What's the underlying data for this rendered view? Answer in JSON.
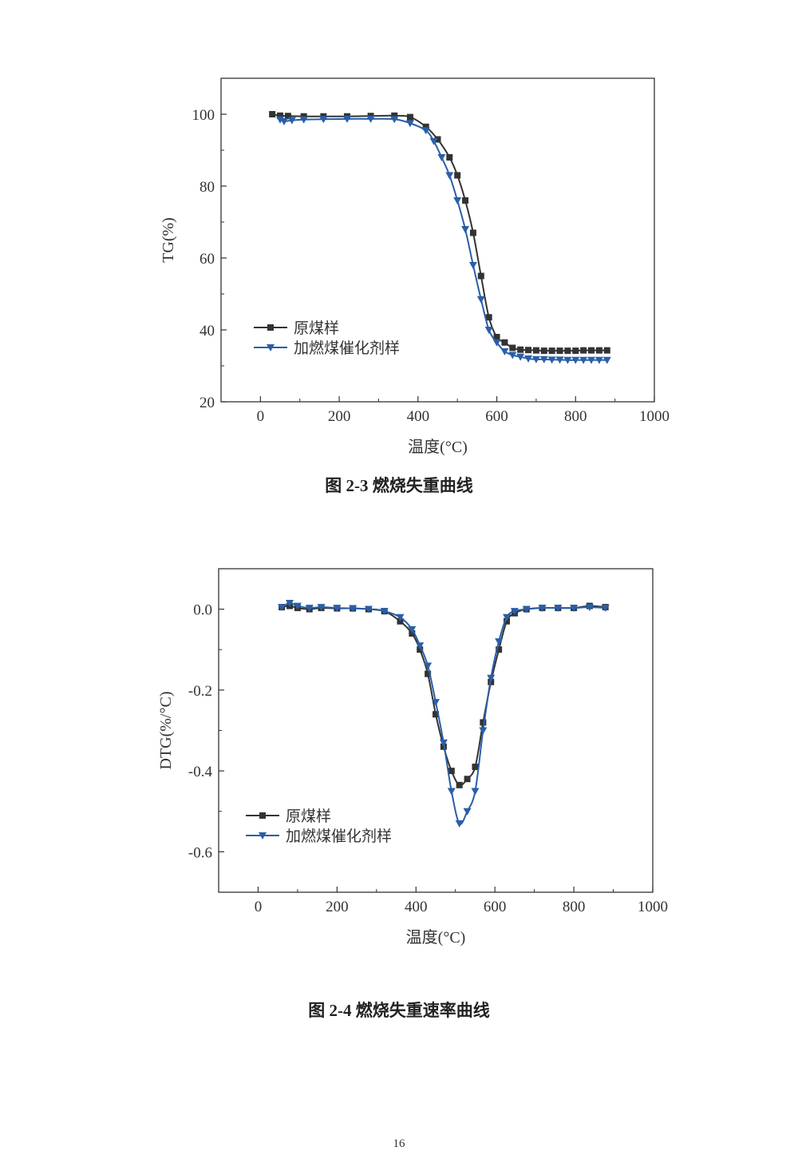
{
  "page_number": "16",
  "chart_data": [
    {
      "type": "line",
      "caption": "图 2-3  燃烧失重曲线",
      "xlabel": "温度(°C)",
      "ylabel": "TG(%)",
      "xlim": [
        -100,
        1000
      ],
      "ylim": [
        20,
        110
      ],
      "xticks": [
        0,
        200,
        400,
        600,
        800,
        1000
      ],
      "yticks": [
        20,
        40,
        60,
        80,
        100
      ],
      "grid": false,
      "legend_position": "lower-left",
      "series": [
        {
          "name": "原煤样",
          "color": "#333333",
          "marker": "square",
          "x": [
            30,
            50,
            70,
            110,
            160,
            220,
            280,
            340,
            380,
            420,
            450,
            480,
            500,
            520,
            540,
            560,
            580,
            600,
            620,
            640,
            660,
            680,
            700,
            720,
            740,
            760,
            780,
            800,
            820,
            840,
            860,
            880
          ],
          "y": [
            100,
            99.6,
            99.5,
            99.4,
            99.4,
            99.4,
            99.5,
            99.6,
            99.2,
            96.5,
            93,
            88,
            83,
            76,
            67,
            55,
            43.5,
            38,
            36.5,
            35,
            34.5,
            34.4,
            34.3,
            34.2,
            34.2,
            34.2,
            34.2,
            34.2,
            34.3,
            34.3,
            34.3,
            34.3
          ]
        },
        {
          "name": "加燃煤催化剂样",
          "color": "#2a5fa8",
          "marker": "triangle-down",
          "x": [
            50,
            60,
            80,
            110,
            160,
            220,
            280,
            340,
            380,
            420,
            440,
            460,
            480,
            500,
            520,
            540,
            560,
            580,
            600,
            620,
            640,
            660,
            680,
            700,
            720,
            740,
            760,
            780,
            800,
            820,
            840,
            860,
            880
          ],
          "y": [
            98.5,
            98,
            98.3,
            98.5,
            98.6,
            98.7,
            98.7,
            98.6,
            97.5,
            95.5,
            92.5,
            88,
            83,
            76,
            68,
            58,
            48.5,
            40,
            36.5,
            34,
            33,
            32.5,
            32,
            31.8,
            31.8,
            31.7,
            31.7,
            31.6,
            31.6,
            31.6,
            31.6,
            31.6,
            31.6
          ]
        }
      ]
    },
    {
      "type": "line",
      "caption": "图 2-4  燃烧失重速率曲线",
      "xlabel": "温度(°C)",
      "ylabel": "DTG(%/°C)",
      "xlim": [
        -100,
        1000
      ],
      "ylim": [
        -0.7,
        0.1
      ],
      "xticks": [
        0,
        200,
        400,
        600,
        800,
        1000
      ],
      "yticks": [
        -0.6,
        -0.4,
        -0.2,
        0.0
      ],
      "ytick_labels": [
        "-0.6",
        "-0.4",
        "-0.2",
        "0.0"
      ],
      "grid": false,
      "legend_position": "lower-left",
      "series": [
        {
          "name": "原煤样",
          "color": "#333333",
          "marker": "square",
          "x": [
            60,
            80,
            100,
            130,
            160,
            200,
            240,
            280,
            320,
            360,
            390,
            410,
            430,
            450,
            470,
            490,
            510,
            530,
            550,
            570,
            590,
            610,
            630,
            650,
            680,
            720,
            760,
            800,
            840,
            880
          ],
          "y": [
            0.005,
            0.008,
            0.003,
            0.0,
            0.003,
            0.002,
            0.002,
            0.0,
            -0.005,
            -0.03,
            -0.06,
            -0.1,
            -0.16,
            -0.26,
            -0.34,
            -0.4,
            -0.435,
            -0.42,
            -0.39,
            -0.28,
            -0.18,
            -0.1,
            -0.03,
            -0.01,
            0.0,
            0.003,
            0.003,
            0.003,
            0.008,
            0.005
          ]
        },
        {
          "name": "加燃煤催化剂样",
          "color": "#2a5fa8",
          "marker": "triangle-down",
          "x": [
            60,
            80,
            100,
            130,
            160,
            200,
            240,
            280,
            320,
            360,
            390,
            410,
            430,
            450,
            470,
            490,
            510,
            530,
            550,
            570,
            590,
            610,
            630,
            650,
            680,
            720,
            760,
            800,
            840,
            880
          ],
          "y": [
            0.005,
            0.015,
            0.008,
            0.003,
            0.005,
            0.003,
            0.002,
            0.0,
            -0.005,
            -0.02,
            -0.05,
            -0.09,
            -0.14,
            -0.23,
            -0.33,
            -0.45,
            -0.53,
            -0.5,
            -0.45,
            -0.3,
            -0.17,
            -0.08,
            -0.02,
            -0.005,
            0.0,
            0.003,
            0.003,
            0.003,
            0.005,
            0.003
          ]
        }
      ]
    }
  ]
}
